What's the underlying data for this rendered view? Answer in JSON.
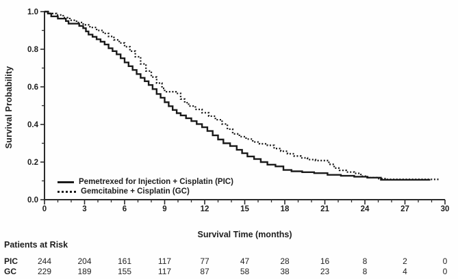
{
  "colors": {
    "curve": "#1a1a1a",
    "axis": "#2a2a2a",
    "text": "#1d1d1d",
    "background": "#ffffff"
  },
  "chart_data": {
    "type": "line",
    "subtype": "kaplan-meier-step",
    "title": "",
    "xlabel": "Survival Time (months)",
    "ylabel": "Survival Probability",
    "xlim": [
      0,
      30
    ],
    "ylim": [
      0.0,
      1.0
    ],
    "x_major_ticks": [
      0,
      3,
      6,
      9,
      12,
      15,
      18,
      21,
      24,
      27,
      30
    ],
    "x_tick_labels": [
      "0",
      "3",
      "6",
      "9",
      "12",
      "15",
      "18",
      "21",
      "24",
      "27",
      "30"
    ],
    "x_minor_step": 1,
    "y_major_ticks": [
      0.0,
      0.2,
      0.4,
      0.6,
      0.8,
      1.0
    ],
    "y_tick_labels": [
      "0.0",
      "0.2",
      "0.4",
      "0.6",
      "0.8",
      "1.0"
    ],
    "y_minor_step": 0.1,
    "grid": false,
    "legend_position": "lower-left-inside",
    "series": [
      {
        "name": "Pemetrexed for Injection + Cisplatin (PIC)",
        "style": "solid",
        "points": [
          [
            0,
            1.0
          ],
          [
            0.25,
            0.99
          ],
          [
            0.5,
            0.975
          ],
          [
            1.0,
            0.963
          ],
          [
            1.6,
            0.95
          ],
          [
            1.8,
            0.936
          ],
          [
            2.6,
            0.924
          ],
          [
            2.9,
            0.912
          ],
          [
            3.1,
            0.895
          ],
          [
            3.3,
            0.878
          ],
          [
            3.6,
            0.866
          ],
          [
            3.9,
            0.853
          ],
          [
            4.2,
            0.84
          ],
          [
            4.5,
            0.825
          ],
          [
            4.8,
            0.805
          ],
          [
            5.1,
            0.79
          ],
          [
            5.4,
            0.773
          ],
          [
            5.7,
            0.752
          ],
          [
            6.0,
            0.73
          ],
          [
            6.3,
            0.71
          ],
          [
            6.6,
            0.69
          ],
          [
            6.9,
            0.668
          ],
          [
            7.2,
            0.648
          ],
          [
            7.5,
            0.63
          ],
          [
            7.8,
            0.61
          ],
          [
            8.1,
            0.588
          ],
          [
            8.4,
            0.562
          ],
          [
            8.7,
            0.542
          ],
          [
            9.0,
            0.518
          ],
          [
            9.3,
            0.497
          ],
          [
            9.6,
            0.477
          ],
          [
            9.9,
            0.46
          ],
          [
            10.2,
            0.448
          ],
          [
            10.6,
            0.433
          ],
          [
            11.0,
            0.418
          ],
          [
            11.4,
            0.402
          ],
          [
            11.8,
            0.385
          ],
          [
            12.2,
            0.365
          ],
          [
            12.6,
            0.342
          ],
          [
            13.0,
            0.32
          ],
          [
            13.4,
            0.3
          ],
          [
            13.9,
            0.285
          ],
          [
            14.4,
            0.265
          ],
          [
            14.8,
            0.247
          ],
          [
            15.2,
            0.23
          ],
          [
            15.7,
            0.216
          ],
          [
            16.2,
            0.2
          ],
          [
            16.7,
            0.186
          ],
          [
            17.3,
            0.177
          ],
          [
            17.9,
            0.158
          ],
          [
            18.5,
            0.151
          ],
          [
            19.3,
            0.146
          ],
          [
            20.2,
            0.141
          ],
          [
            21.2,
            0.132
          ],
          [
            22.2,
            0.127
          ],
          [
            23.2,
            0.122
          ],
          [
            24.2,
            0.117
          ],
          [
            25.2,
            0.106
          ],
          [
            28.9,
            0.106
          ]
        ]
      },
      {
        "name": "Gemcitabine + Cisplatin (GC)",
        "style": "dotted",
        "points": [
          [
            0,
            1.0
          ],
          [
            0.4,
            0.99
          ],
          [
            0.9,
            0.982
          ],
          [
            1.4,
            0.968
          ],
          [
            1.9,
            0.954
          ],
          [
            2.4,
            0.942
          ],
          [
            2.9,
            0.93
          ],
          [
            3.4,
            0.916
          ],
          [
            3.9,
            0.9
          ],
          [
            4.4,
            0.884
          ],
          [
            4.8,
            0.868
          ],
          [
            5.2,
            0.85
          ],
          [
            5.6,
            0.833
          ],
          [
            6.0,
            0.813
          ],
          [
            6.4,
            0.79
          ],
          [
            6.8,
            0.76
          ],
          [
            7.2,
            0.722
          ],
          [
            7.6,
            0.684
          ],
          [
            8.0,
            0.652
          ],
          [
            8.4,
            0.62
          ],
          [
            8.8,
            0.592
          ],
          [
            9.0,
            0.574
          ],
          [
            9.9,
            0.565
          ],
          [
            10.2,
            0.535
          ],
          [
            10.5,
            0.516
          ],
          [
            10.8,
            0.498
          ],
          [
            11.3,
            0.48
          ],
          [
            11.8,
            0.462
          ],
          [
            12.3,
            0.444
          ],
          [
            12.8,
            0.425
          ],
          [
            13.3,
            0.402
          ],
          [
            13.7,
            0.375
          ],
          [
            14.1,
            0.35
          ],
          [
            14.6,
            0.335
          ],
          [
            15.1,
            0.322
          ],
          [
            15.6,
            0.307
          ],
          [
            16.1,
            0.297
          ],
          [
            16.7,
            0.289
          ],
          [
            17.2,
            0.272
          ],
          [
            17.7,
            0.258
          ],
          [
            18.2,
            0.244
          ],
          [
            18.7,
            0.232
          ],
          [
            19.2,
            0.222
          ],
          [
            19.7,
            0.213
          ],
          [
            20.3,
            0.208
          ],
          [
            21.3,
            0.188
          ],
          [
            21.7,
            0.168
          ],
          [
            22.1,
            0.156
          ],
          [
            22.6,
            0.147
          ],
          [
            23.2,
            0.14
          ],
          [
            23.7,
            0.125
          ],
          [
            24.1,
            0.117
          ],
          [
            24.9,
            0.112
          ],
          [
            25.6,
            0.108
          ],
          [
            29.6,
            0.108
          ]
        ]
      }
    ]
  },
  "risk_table": {
    "title": "Patients at Risk",
    "time_points": [
      0,
      3,
      6,
      9,
      12,
      15,
      18,
      21,
      24,
      27,
      30
    ],
    "rows": [
      {
        "label": "PIC",
        "counts": [
          244,
          204,
          161,
          117,
          77,
          47,
          28,
          16,
          8,
          2,
          0
        ]
      },
      {
        "label": "GC",
        "counts": [
          229,
          189,
          155,
          117,
          87,
          58,
          38,
          23,
          8,
          4,
          0
        ]
      }
    ]
  }
}
